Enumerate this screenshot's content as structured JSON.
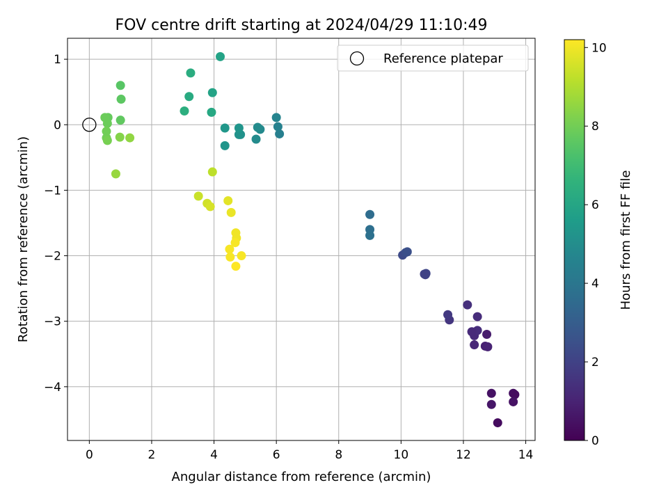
{
  "chart_data": {
    "type": "scatter",
    "title": "FOV centre drift starting at 2024/04/29 11:10:49",
    "xlabel": "Angular distance from reference (arcmin)",
    "ylabel": "Rotation from reference (arcmin)",
    "xlim": [
      -0.7,
      14.3
    ],
    "ylim": [
      -4.82,
      1.32
    ],
    "xticks": [
      0,
      2,
      4,
      6,
      8,
      10,
      12,
      14
    ],
    "yticks": [
      -4,
      -3,
      -2,
      -1,
      0,
      1
    ],
    "grid": true,
    "legend": {
      "label": "Reference platepar",
      "placement": "top-right"
    },
    "reference_point": {
      "x": 0,
      "y": 0
    },
    "colorbar": {
      "label": "Hours from first FF file",
      "range": [
        0,
        10.2
      ],
      "ticks": [
        0,
        2,
        4,
        6,
        8,
        10
      ],
      "colormap": "viridis"
    },
    "points": [
      {
        "x": 13.1,
        "y": -4.55,
        "c": 0.3
      },
      {
        "x": 12.9,
        "y": -4.1,
        "c": 0.5
      },
      {
        "x": 12.9,
        "y": -4.27,
        "c": 0.6
      },
      {
        "x": 13.6,
        "y": -4.1,
        "c": 0.4
      },
      {
        "x": 13.65,
        "y": -4.12,
        "c": 0.3
      },
      {
        "x": 13.6,
        "y": -4.23,
        "c": 0.5
      },
      {
        "x": 12.7,
        "y": -3.38,
        "c": 0.9
      },
      {
        "x": 12.78,
        "y": -3.39,
        "c": 1.0
      },
      {
        "x": 12.75,
        "y": -3.2,
        "c": 0.8
      },
      {
        "x": 12.35,
        "y": -3.36,
        "c": 1.1
      },
      {
        "x": 12.35,
        "y": -3.22,
        "c": 1.2
      },
      {
        "x": 12.45,
        "y": -3.14,
        "c": 1.3
      },
      {
        "x": 12.27,
        "y": -3.16,
        "c": 1.2
      },
      {
        "x": 12.45,
        "y": -2.93,
        "c": 1.3
      },
      {
        "x": 12.13,
        "y": -2.75,
        "c": 1.4
      },
      {
        "x": 11.55,
        "y": -2.98,
        "c": 1.6
      },
      {
        "x": 11.5,
        "y": -2.9,
        "c": 1.7
      },
      {
        "x": 10.75,
        "y": -2.28,
        "c": 2.0
      },
      {
        "x": 10.8,
        "y": -2.27,
        "c": 2.1
      },
      {
        "x": 10.78,
        "y": -2.29,
        "c": 2.0
      },
      {
        "x": 10.05,
        "y": -1.99,
        "c": 2.3
      },
      {
        "x": 10.15,
        "y": -1.95,
        "c": 2.4
      },
      {
        "x": 10.2,
        "y": -1.94,
        "c": 2.5
      },
      {
        "x": 9.0,
        "y": -1.37,
        "c": 3.6
      },
      {
        "x": 9.0,
        "y": -1.6,
        "c": 3.7
      },
      {
        "x": 9.0,
        "y": -1.69,
        "c": 3.8
      },
      {
        "x": 6.1,
        "y": -0.14,
        "c": 4.4
      },
      {
        "x": 6.05,
        "y": -0.03,
        "c": 4.5
      },
      {
        "x": 6.0,
        "y": 0.11,
        "c": 4.6
      },
      {
        "x": 5.48,
        "y": -0.07,
        "c": 4.8
      },
      {
        "x": 5.4,
        "y": -0.04,
        "c": 4.9
      },
      {
        "x": 5.35,
        "y": -0.22,
        "c": 4.9
      },
      {
        "x": 4.85,
        "y": -0.15,
        "c": 5.1
      },
      {
        "x": 4.8,
        "y": -0.15,
        "c": 5.2
      },
      {
        "x": 4.8,
        "y": -0.05,
        "c": 5.3
      },
      {
        "x": 4.35,
        "y": -0.05,
        "c": 5.4
      },
      {
        "x": 4.35,
        "y": -0.32,
        "c": 5.3
      },
      {
        "x": 4.2,
        "y": 1.04,
        "c": 5.9
      },
      {
        "x": 3.95,
        "y": 0.49,
        "c": 5.9
      },
      {
        "x": 3.92,
        "y": 0.19,
        "c": 6.1
      },
      {
        "x": 3.25,
        "y": 0.79,
        "c": 6.3
      },
      {
        "x": 3.2,
        "y": 0.43,
        "c": 6.2
      },
      {
        "x": 3.05,
        "y": 0.21,
        "c": 6.4
      },
      {
        "x": 1.0,
        "y": 0.6,
        "c": 7.5
      },
      {
        "x": 1.02,
        "y": 0.39,
        "c": 7.6
      },
      {
        "x": 1.0,
        "y": 0.07,
        "c": 7.7
      },
      {
        "x": 0.6,
        "y": 0.11,
        "c": 7.8
      },
      {
        "x": 0.5,
        "y": 0.11,
        "c": 7.9
      },
      {
        "x": 0.58,
        "y": 0.02,
        "c": 7.9
      },
      {
        "x": 0.55,
        "y": -0.1,
        "c": 8.0
      },
      {
        "x": 0.55,
        "y": -0.2,
        "c": 8.0
      },
      {
        "x": 0.58,
        "y": -0.24,
        "c": 8.1
      },
      {
        "x": 0.98,
        "y": -0.19,
        "c": 8.3
      },
      {
        "x": 1.3,
        "y": -0.2,
        "c": 8.5
      },
      {
        "x": 0.85,
        "y": -0.75,
        "c": 8.6
      },
      {
        "x": 3.95,
        "y": -0.72,
        "c": 9.2
      },
      {
        "x": 3.5,
        "y": -1.09,
        "c": 9.4
      },
      {
        "x": 3.78,
        "y": -1.2,
        "c": 9.5
      },
      {
        "x": 3.88,
        "y": -1.25,
        "c": 9.6
      },
      {
        "x": 4.45,
        "y": -1.16,
        "c": 9.8
      },
      {
        "x": 4.55,
        "y": -1.34,
        "c": 9.9
      },
      {
        "x": 4.7,
        "y": -1.65,
        "c": 10.0
      },
      {
        "x": 4.72,
        "y": -1.73,
        "c": 10.0
      },
      {
        "x": 4.68,
        "y": -1.8,
        "c": 10.1
      },
      {
        "x": 4.5,
        "y": -1.9,
        "c": 10.1
      },
      {
        "x": 4.52,
        "y": -2.02,
        "c": 10.1
      },
      {
        "x": 4.88,
        "y": -2.0,
        "c": 10.1
      },
      {
        "x": 4.7,
        "y": -2.16,
        "c": 10.2
      }
    ]
  }
}
